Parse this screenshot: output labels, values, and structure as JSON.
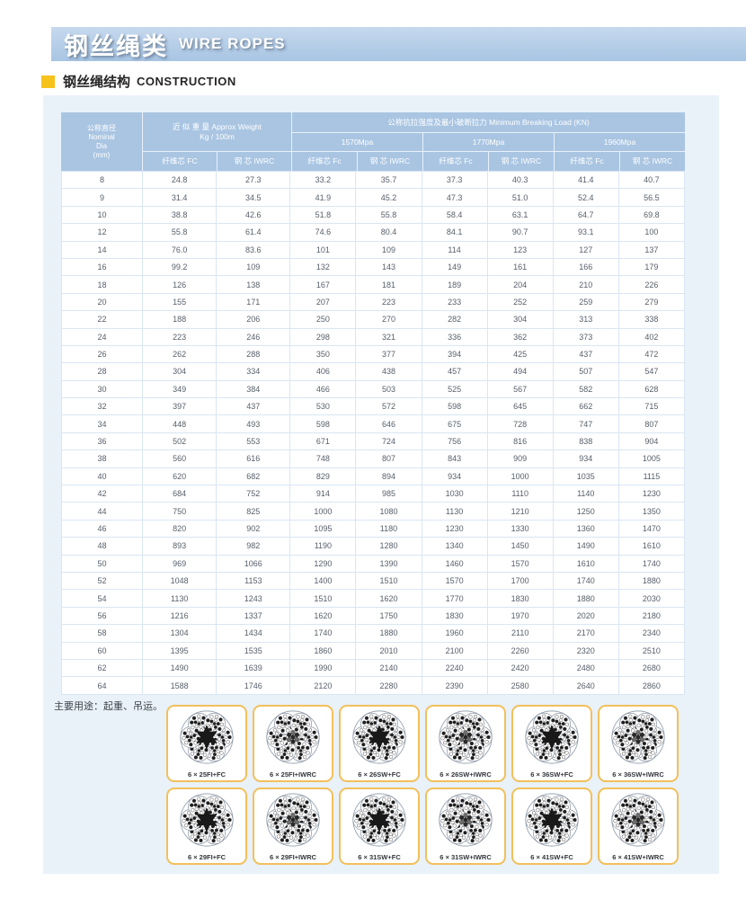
{
  "page": {
    "title_cn": "钢丝绳类",
    "title_en": "WIRE ROPES",
    "section_cn": "钢丝绳结构",
    "section_en": "CONSTRUCTION",
    "footnote": "主要用途：起重、吊运。"
  },
  "colors": {
    "titlebar_blue": "#a8c5e3",
    "header_cell_blue": "#a9c5e2",
    "panel_blue": "#e9f1f9",
    "grid_line": "#d9e6f3",
    "accent_yellow": "#f6c21c",
    "card_border_yellow": "#f2c05a"
  },
  "table": {
    "headers": {
      "dia": "公称直径\nNominal\nDia\n(mm)",
      "weight_group": "近 似 重 量 Approx Weight\nKg / 100m",
      "load_group": "公称抗拉强度及最小破断拉力 Minimum Breaking Load (KN)",
      "grades": [
        "1570Mpa",
        "1770Mpa",
        "1960Mpa"
      ],
      "subcols": [
        "纤维芯 FC",
        "钢 芯 IWRC",
        "纤维芯 Fc",
        "钢 芯 IWRC",
        "纤维芯 Fc",
        "钢 芯 IWRC",
        "纤维芯 Fc",
        "钢 芯 IWRC"
      ]
    },
    "rows": [
      [
        "8",
        "24.8",
        "27.3",
        "33.2",
        "35.7",
        "37.3",
        "40.3",
        "41.4",
        "40.7"
      ],
      [
        "9",
        "31.4",
        "34.5",
        "41.9",
        "45.2",
        "47.3",
        "51.0",
        "52.4",
        "56.5"
      ],
      [
        "10",
        "38.8",
        "42.6",
        "51.8",
        "55.8",
        "58.4",
        "63.1",
        "64.7",
        "69.8"
      ],
      [
        "12",
        "55.8",
        "61.4",
        "74.6",
        "80.4",
        "84.1",
        "90.7",
        "93.1",
        "100"
      ],
      [
        "14",
        "76.0",
        "83.6",
        "101",
        "109",
        "114",
        "123",
        "127",
        "137"
      ],
      [
        "16",
        "99.2",
        "109",
        "132",
        "143",
        "149",
        "161",
        "166",
        "179"
      ],
      [
        "18",
        "126",
        "138",
        "167",
        "181",
        "189",
        "204",
        "210",
        "226"
      ],
      [
        "20",
        "155",
        "171",
        "207",
        "223",
        "233",
        "252",
        "259",
        "279"
      ],
      [
        "22",
        "188",
        "206",
        "250",
        "270",
        "282",
        "304",
        "313",
        "338"
      ],
      [
        "24",
        "223",
        "246",
        "298",
        "321",
        "336",
        "362",
        "373",
        "402"
      ],
      [
        "26",
        "262",
        "288",
        "350",
        "377",
        "394",
        "425",
        "437",
        "472"
      ],
      [
        "28",
        "304",
        "334",
        "406",
        "438",
        "457",
        "494",
        "507",
        "547"
      ],
      [
        "30",
        "349",
        "384",
        "466",
        "503",
        "525",
        "567",
        "582",
        "628"
      ],
      [
        "32",
        "397",
        "437",
        "530",
        "572",
        "598",
        "645",
        "662",
        "715"
      ],
      [
        "34",
        "448",
        "493",
        "598",
        "646",
        "675",
        "728",
        "747",
        "807"
      ],
      [
        "36",
        "502",
        "553",
        "671",
        "724",
        "756",
        "816",
        "838",
        "904"
      ],
      [
        "38",
        "560",
        "616",
        "748",
        "807",
        "843",
        "909",
        "934",
        "1005"
      ],
      [
        "40",
        "620",
        "682",
        "829",
        "894",
        "934",
        "1000",
        "1035",
        "1115"
      ],
      [
        "42",
        "684",
        "752",
        "914",
        "985",
        "1030",
        "1110",
        "1140",
        "1230"
      ],
      [
        "44",
        "750",
        "825",
        "1000",
        "1080",
        "1130",
        "1210",
        "1250",
        "1350"
      ],
      [
        "46",
        "820",
        "902",
        "1095",
        "1180",
        "1230",
        "1330",
        "1360",
        "1470"
      ],
      [
        "48",
        "893",
        "982",
        "1190",
        "1280",
        "1340",
        "1450",
        "1490",
        "1610"
      ],
      [
        "50",
        "969",
        "1066",
        "1290",
        "1390",
        "1460",
        "1570",
        "1610",
        "1740"
      ],
      [
        "52",
        "1048",
        "1153",
        "1400",
        "1510",
        "1570",
        "1700",
        "1740",
        "1880"
      ],
      [
        "54",
        "1130",
        "1243",
        "1510",
        "1620",
        "1770",
        "1830",
        "1880",
        "2030"
      ],
      [
        "56",
        "1216",
        "1337",
        "1620",
        "1750",
        "1830",
        "1970",
        "2020",
        "2180"
      ],
      [
        "58",
        "1304",
        "1434",
        "1740",
        "1880",
        "1960",
        "2110",
        "2170",
        "2340"
      ],
      [
        "60",
        "1395",
        "1535",
        "1860",
        "2010",
        "2100",
        "2260",
        "2320",
        "2510"
      ],
      [
        "62",
        "1490",
        "1639",
        "1990",
        "2140",
        "2240",
        "2420",
        "2480",
        "2680"
      ],
      [
        "64",
        "1588",
        "1746",
        "2120",
        "2280",
        "2390",
        "2580",
        "2640",
        "2860"
      ]
    ]
  },
  "diagrams": {
    "rows": [
      [
        {
          "label": "6 × 25FI+FC",
          "core": "FC"
        },
        {
          "label": "6 × 25FI+IWRC",
          "core": "IWRC"
        },
        {
          "label": "6 × 26SW+FC",
          "core": "FC"
        },
        {
          "label": "6 × 26SW+IWRC",
          "core": "IWRC"
        },
        {
          "label": "6 × 36SW+FC",
          "core": "FC"
        },
        {
          "label": "6 × 36SW+IWRC",
          "core": "IWRC"
        }
      ],
      [
        {
          "label": "6 × 29FI+FC",
          "core": "FC"
        },
        {
          "label": "6 × 29FI+IWRC",
          "core": "IWRC"
        },
        {
          "label": "6 × 31SW+FC",
          "core": "FC"
        },
        {
          "label": "6 × 31SW+IWRC",
          "core": "IWRC"
        },
        {
          "label": "6 × 41SW+FC",
          "core": "FC"
        },
        {
          "label": "6 × 41SW+IWRC",
          "core": "IWRC"
        }
      ]
    ]
  }
}
